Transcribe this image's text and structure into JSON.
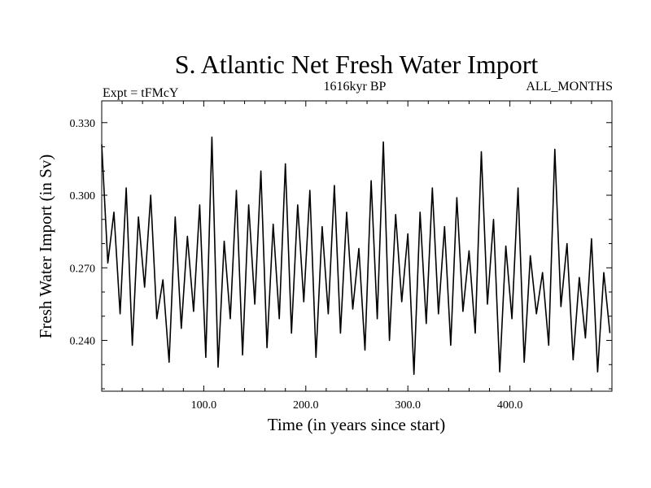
{
  "chart_data": {
    "type": "line",
    "title": "S. Atlantic Net Fresh Water Import",
    "subtitle_left": "Expt = tFMcY",
    "subtitle_center": "1616kyr BP",
    "subtitle_right": "ALL_MONTHS",
    "xlabel": "Time (in years since start)",
    "ylabel": "Fresh Water Import (in Sv)",
    "xlim": [
      0,
      500
    ],
    "ylim": [
      0.219,
      0.339
    ],
    "x_ticks": [
      100,
      200,
      300,
      400
    ],
    "x_tick_labels": [
      "100.0",
      "200.0",
      "300.0",
      "400.0"
    ],
    "y_ticks": [
      0.24,
      0.27,
      0.3,
      0.33
    ],
    "y_tick_labels": [
      "0.240",
      "0.270",
      "0.300",
      "0.330"
    ],
    "grid": false,
    "line_color": "#000000",
    "series": [
      {
        "name": "Net Fresh Water Import",
        "x": [
          0,
          6,
          12,
          18,
          24,
          30,
          36,
          42,
          48,
          54,
          60,
          66,
          72,
          78,
          84,
          90,
          96,
          102,
          108,
          114,
          120,
          126,
          132,
          138,
          144,
          150,
          156,
          162,
          168,
          174,
          180,
          186,
          192,
          198,
          204,
          210,
          216,
          222,
          228,
          234,
          240,
          246,
          252,
          258,
          264,
          270,
          276,
          282,
          288,
          294,
          300,
          306,
          312,
          318,
          324,
          330,
          336,
          342,
          348,
          354,
          360,
          366,
          372,
          378,
          384,
          390,
          396,
          402,
          408,
          414,
          420,
          426,
          432,
          438,
          444,
          450,
          456,
          462,
          468,
          474,
          480,
          486,
          492,
          498
        ],
        "values": [
          0.321,
          0.272,
          0.293,
          0.251,
          0.303,
          0.238,
          0.291,
          0.262,
          0.3,
          0.249,
          0.265,
          0.231,
          0.291,
          0.245,
          0.283,
          0.252,
          0.296,
          0.233,
          0.324,
          0.229,
          0.281,
          0.249,
          0.302,
          0.234,
          0.296,
          0.255,
          0.31,
          0.237,
          0.288,
          0.249,
          0.313,
          0.243,
          0.296,
          0.256,
          0.302,
          0.233,
          0.287,
          0.251,
          0.304,
          0.243,
          0.293,
          0.253,
          0.278,
          0.236,
          0.306,
          0.249,
          0.322,
          0.24,
          0.292,
          0.256,
          0.284,
          0.226,
          0.293,
          0.247,
          0.303,
          0.251,
          0.287,
          0.238,
          0.299,
          0.252,
          0.277,
          0.243,
          0.318,
          0.255,
          0.29,
          0.227,
          0.279,
          0.249,
          0.303,
          0.231,
          0.275,
          0.251,
          0.268,
          0.238,
          0.319,
          0.254,
          0.28,
          0.232,
          0.266,
          0.241,
          0.282,
          0.227,
          0.268,
          0.243
        ]
      }
    ]
  }
}
